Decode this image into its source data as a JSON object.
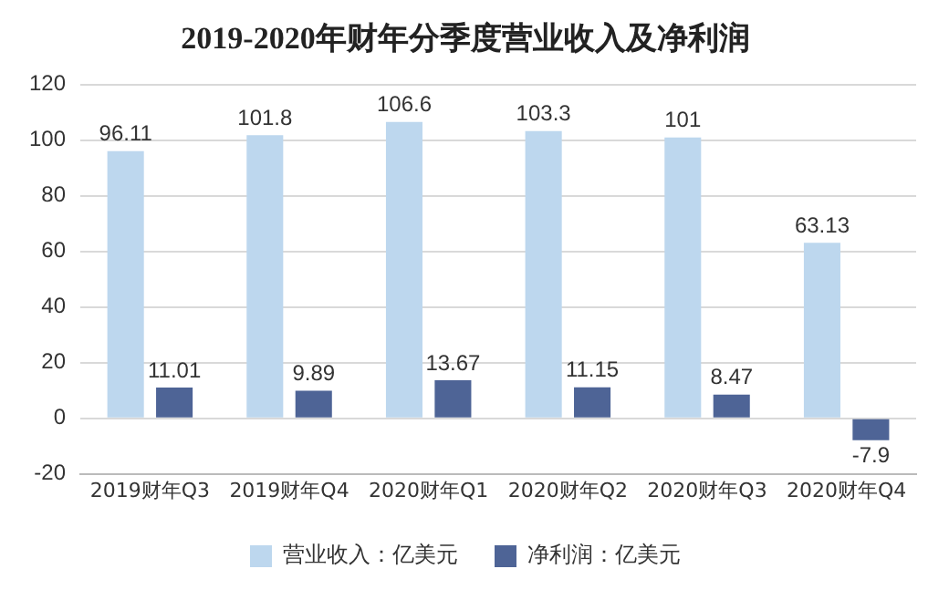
{
  "chart_data": {
    "type": "bar",
    "title": "2019-2020年财年分季度营业收入及净利润",
    "categories": [
      "2019财年Q3",
      "2019财年Q4",
      "2020财年Q1",
      "2020财年Q2",
      "2020财年Q3",
      "2020财年Q4"
    ],
    "series": [
      {
        "name": "营业收入：亿美元",
        "color": "#bdd7ee",
        "values": [
          96.11,
          101.8,
          106.6,
          103.3,
          101,
          63.13
        ]
      },
      {
        "name": "净利润：亿美元",
        "color": "#4e6496",
        "values": [
          11.01,
          9.89,
          13.67,
          11.15,
          8.47,
          -7.9
        ]
      }
    ],
    "ylim": [
      -20,
      120
    ],
    "yticks": [
      -20,
      0,
      20,
      40,
      60,
      80,
      100,
      120
    ],
    "grid": "y",
    "legend": "bottom",
    "data_labels": true
  }
}
